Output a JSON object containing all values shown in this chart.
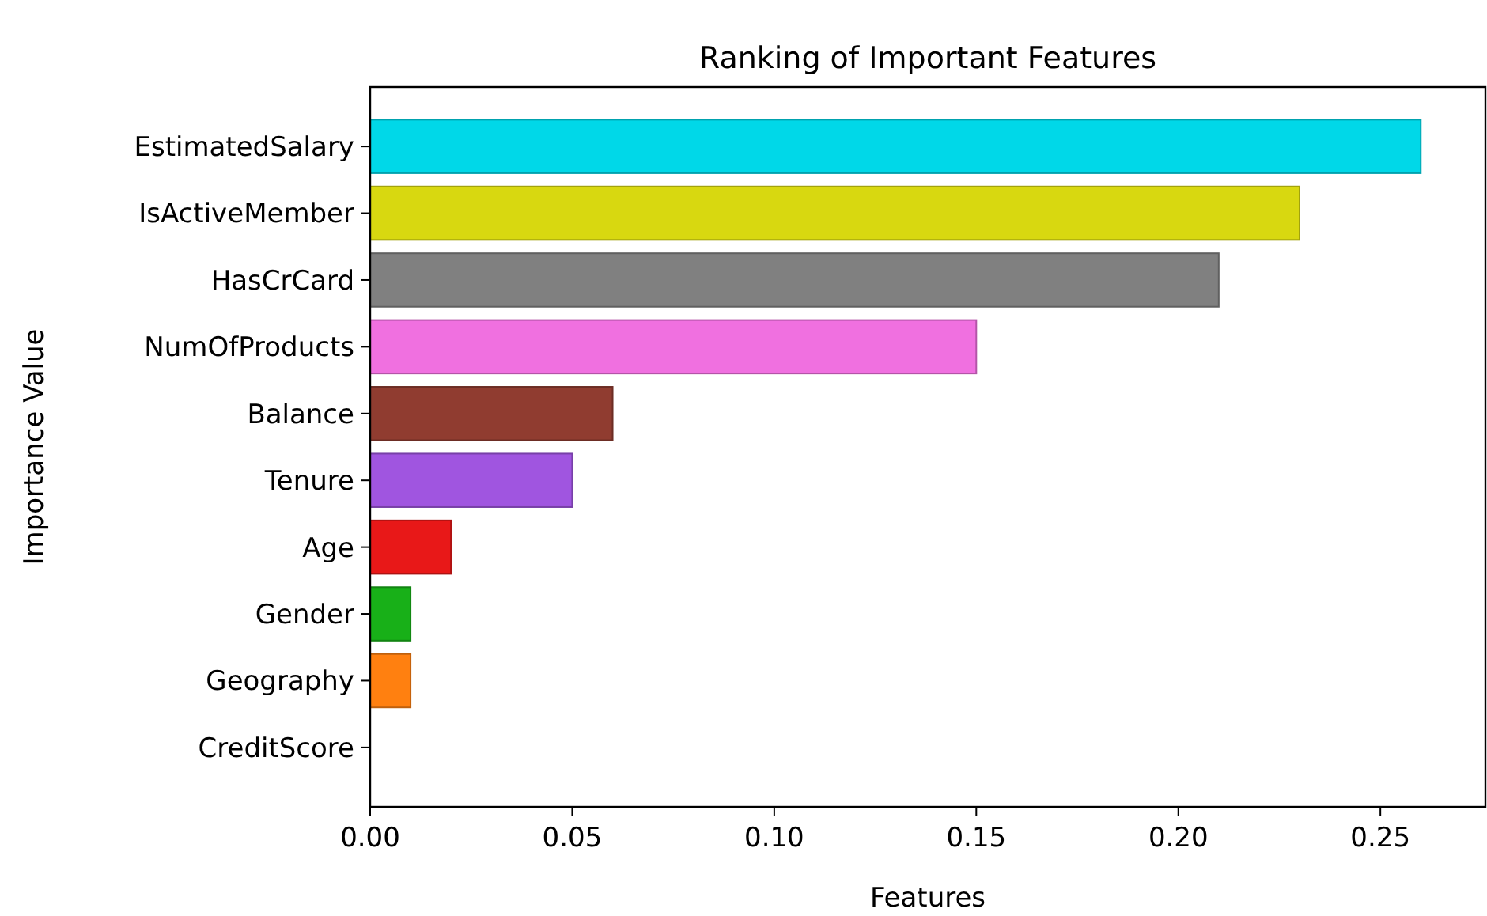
{
  "chart_data": {
    "type": "bar",
    "orientation": "horizontal",
    "title": "Ranking of Important Features",
    "xlabel": "Features",
    "ylabel": "Importance Value",
    "categories": [
      "EstimatedSalary",
      "IsActiveMember",
      "HasCrCard",
      "NumOfProducts",
      "Balance",
      "Tenure",
      "Age",
      "Gender",
      "Geography",
      "CreditScore"
    ],
    "values": [
      0.26,
      0.23,
      0.21,
      0.15,
      0.06,
      0.05,
      0.02,
      0.01,
      0.01,
      0
    ],
    "colors": [
      "#00d8e8",
      "#d8d810",
      "#808080",
      "#f070e0",
      "#903c30",
      "#a055e0",
      "#e81818",
      "#18b018",
      "#ff8010",
      "#1f77b4"
    ],
    "xlim": [
      0,
      0.276
    ],
    "xticks": [
      {
        "value": 0,
        "label": "0.00"
      },
      {
        "value": 0.05,
        "label": "0.05"
      },
      {
        "value": 0.1,
        "label": "0.10"
      },
      {
        "value": 0.15,
        "label": "0.15"
      },
      {
        "value": 0.2,
        "label": "0.20"
      },
      {
        "value": 0.25,
        "label": "0.25"
      }
    ],
    "grid": false
  }
}
